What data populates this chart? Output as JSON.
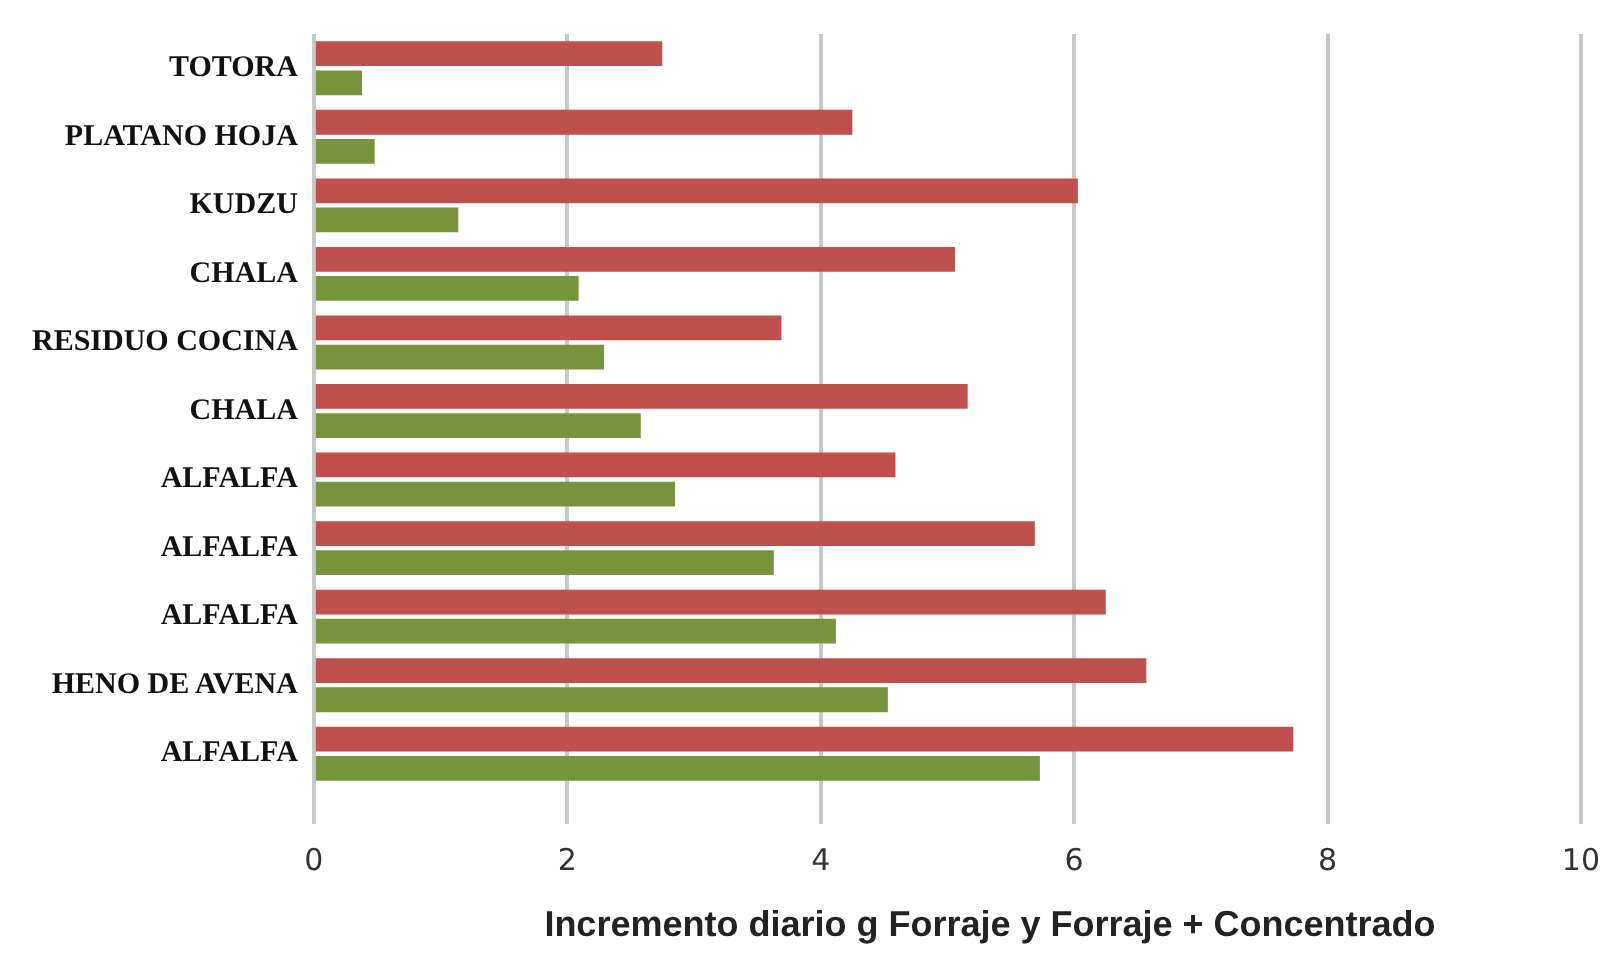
{
  "chart_data": {
    "type": "bar",
    "orientation": "horizontal",
    "xlabel": "Incremento diario g Forraje y Forraje + Concentrado",
    "categories": [
      "TOTORA",
      "PLATANO HOJA",
      "KUDZU",
      "CHALA",
      "RESIDUO COCINA",
      "CHALA",
      "ALFALFA",
      "ALFALFA",
      "ALFALFA",
      "HENO DE AVENA",
      "ALFALFA"
    ],
    "series": [
      {
        "color": "#c0504d",
        "values": [
          2.75,
          4.25,
          6.03,
          5.06,
          3.69,
          5.16,
          4.59,
          5.69,
          6.25,
          6.57,
          7.73
        ]
      },
      {
        "color": "#77933c",
        "values": [
          0.38,
          0.48,
          1.14,
          2.09,
          2.29,
          2.58,
          2.85,
          3.63,
          4.12,
          4.53,
          5.73
        ]
      }
    ],
    "xlim": [
      0,
      10
    ],
    "xticks": [
      0,
      2,
      4,
      6,
      8,
      10
    ],
    "grid": "x",
    "legend": false
  }
}
